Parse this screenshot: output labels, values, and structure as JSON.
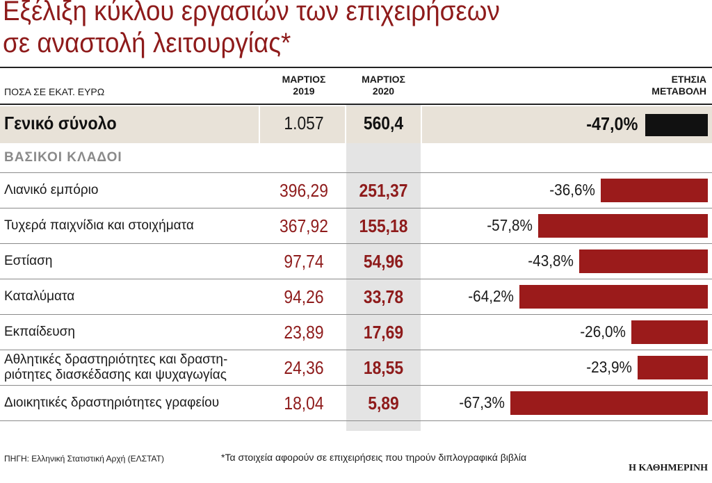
{
  "title_line1": "Εξέλιξη κύκλου εργασιών των επιχειρήσεων",
  "title_line2": "σε αναστολή λειτουργίας*",
  "chart_data": {
    "type": "table",
    "unit_label": "ΠΟΣΑ ΣΕ ΕΚΑΤ. ΕΥΡΩ",
    "columns": {
      "col2019_line1": "ΜΑΡΤΙΟΣ",
      "col2019_line2": "2019",
      "col2020_line1": "ΜΑΡΤΙΟΣ",
      "col2020_line2": "2020",
      "change_line1": "ΕΤΗΣΙΑ",
      "change_line2": "ΜΕΤΑΒΟΛΗ"
    },
    "total": {
      "label": "Γενικό σύνολο",
      "v2019": "1.057",
      "v2020": "560,4",
      "change_label": "-47,0%",
      "change": -47.0
    },
    "sectors_header": "ΒΑΣΙΚΟΙ ΚΛΑΔΟΙ",
    "rows": [
      {
        "label_line1": "Λιανικό εμπόριο",
        "label_line2": "",
        "v2019": "396,29",
        "v2020": "251,37",
        "change_label": "-36,6%",
        "change": -36.6
      },
      {
        "label_line1": "Τυχερά παιχνίδια και στοιχήματα",
        "label_line2": "",
        "v2019": "367,92",
        "v2020": "155,18",
        "change_label": "-57,8%",
        "change": -57.8
      },
      {
        "label_line1": "Εστίαση",
        "label_line2": "",
        "v2019": "97,74",
        "v2020": "54,96",
        "change_label": "-43,8%",
        "change": -43.8
      },
      {
        "label_line1": "Καταλύματα",
        "label_line2": "",
        "v2019": "94,26",
        "v2020": "33,78",
        "change_label": "-64,2%",
        "change": -64.2
      },
      {
        "label_line1": "Εκπαίδευση",
        "label_line2": "",
        "v2019": "23,89",
        "v2020": "17,69",
        "change_label": "-26,0%",
        "change": -26.0
      },
      {
        "label_line1": "Αθλητικές δραστηριότητες και δραστη-",
        "label_line2": "ριότητες διασκέδασης και ψυχαγωγίας",
        "v2019": "24,36",
        "v2020": "18,55",
        "change_label": "-23,9%",
        "change": -23.9
      },
      {
        "label_line1": "Διοικητικές δραστηριότητες γραφείου",
        "label_line2": "",
        "v2019": "18,04",
        "v2020": "5,89",
        "change_label": "-67,3%",
        "change": -67.3
      }
    ],
    "colors": {
      "total_bar": "#111111",
      "sector_bar": "#9b1b1b"
    }
  },
  "footer": {
    "source": "ΠΗΓΗ: Ελληνική Στατιστική Αρχή (ΕΛΣΤΑΤ)",
    "note": "*Τα στοιχεία αφορούν σε επιχειρήσεις που τηρούν διπλογραφικά βιβλία",
    "brand": "Η ΚΑΘΗΜΕΡΙΝΗ"
  }
}
